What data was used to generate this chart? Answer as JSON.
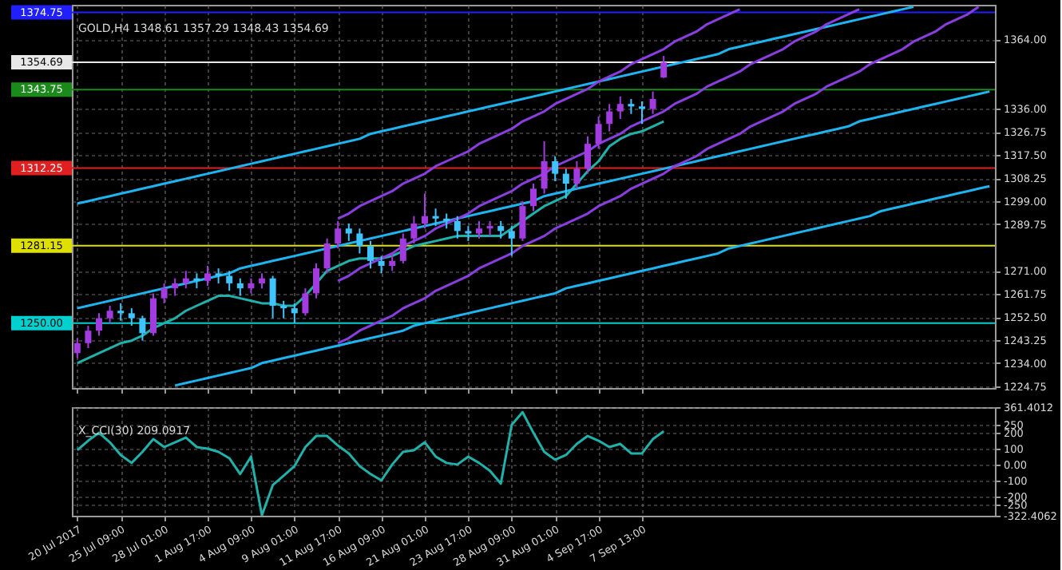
{
  "chart_data": [
    {
      "type": "candlestick",
      "title": "GOLD,H4  1348.61 1357.29 1348.43 1354.69",
      "categories": [
        null,
        null,
        null,
        null,
        null,
        null,
        null,
        null,
        null,
        null,
        null,
        null,
        null,
        null,
        null,
        null,
        null,
        null,
        null,
        null,
        null,
        null,
        null,
        null,
        null,
        null,
        null,
        null,
        null,
        null,
        null,
        null,
        null,
        null,
        null,
        null,
        null,
        null,
        null,
        null,
        null,
        null,
        null,
        null,
        null,
        null,
        null,
        null,
        null,
        null,
        null,
        null,
        null,
        null,
        null,
        null,
        null,
        null,
        null,
        null,
        null,
        null,
        null,
        null,
        null,
        null,
        null,
        null,
        null,
        null,
        null,
        null,
        null,
        null,
        null,
        null,
        null,
        null,
        null,
        null,
        null,
        null,
        null,
        null,
        null
      ],
      "ohlc": [
        [
          1238,
          1244,
          1236,
          1242
        ],
        [
          1242,
          1249,
          1240,
          1247
        ],
        [
          1247,
          1254,
          1245,
          1252
        ],
        [
          1252,
          1257,
          1250,
          1255
        ],
        [
          1255,
          1258,
          1251,
          1254
        ],
        [
          1254,
          1256,
          1249,
          1252
        ],
        [
          1252,
          1253,
          1243,
          1246
        ],
        [
          1246,
          1262,
          1245,
          1260
        ],
        [
          1260,
          1266,
          1258,
          1264
        ],
        [
          1264,
          1268,
          1261,
          1266
        ],
        [
          1266,
          1271,
          1264,
          1268
        ],
        [
          1268,
          1270,
          1264,
          1267
        ],
        [
          1267,
          1273,
          1265,
          1270
        ],
        [
          1270,
          1272,
          1266,
          1269
        ],
        [
          1269,
          1271,
          1263,
          1266
        ],
        [
          1266,
          1268,
          1261,
          1264
        ],
        [
          1264,
          1268,
          1262,
          1266
        ],
        [
          1266,
          1270,
          1264,
          1268
        ],
        [
          1268,
          1269,
          1252,
          1257
        ],
        [
          1257,
          1259,
          1252,
          1256
        ],
        [
          1256,
          1258,
          1250,
          1254
        ],
        [
          1254,
          1264,
          1253,
          1262
        ],
        [
          1262,
          1274,
          1260,
          1272
        ],
        [
          1272,
          1284,
          1270,
          1282
        ],
        [
          1282,
          1291,
          1280,
          1288
        ],
        [
          1288,
          1290,
          1283,
          1286
        ],
        [
          1286,
          1288,
          1278,
          1281
        ],
        [
          1281,
          1283,
          1272,
          1275
        ],
        [
          1275,
          1277,
          1270,
          1273
        ],
        [
          1273,
          1278,
          1271,
          1275
        ],
        [
          1275,
          1286,
          1274,
          1284
        ],
        [
          1284,
          1293,
          1282,
          1290
        ],
        [
          1290,
          1302,
          1288,
          1293
        ],
        [
          1293,
          1296,
          1289,
          1292
        ],
        [
          1292,
          1294,
          1288,
          1291
        ],
        [
          1291,
          1293,
          1284,
          1287
        ],
        [
          1287,
          1289,
          1283,
          1286
        ],
        [
          1286,
          1291,
          1284,
          1288
        ],
        [
          1288,
          1291,
          1285,
          1289
        ],
        [
          1289,
          1291,
          1284,
          1287
        ],
        [
          1287,
          1289,
          1277,
          1284
        ],
        [
          1284,
          1299,
          1283,
          1297
        ],
        [
          1297,
          1306,
          1295,
          1304
        ],
        [
          1304,
          1323,
          1302,
          1315
        ],
        [
          1315,
          1317,
          1307,
          1310
        ],
        [
          1310,
          1312,
          1300,
          1306
        ],
        [
          1306,
          1315,
          1304,
          1312
        ],
        [
          1312,
          1325,
          1310,
          1322
        ],
        [
          1322,
          1333,
          1320,
          1330
        ],
        [
          1330,
          1338,
          1327,
          1335
        ],
        [
          1335,
          1341,
          1332,
          1338
        ],
        [
          1338,
          1340,
          1334,
          1337
        ],
        [
          1337,
          1339,
          1330,
          1336
        ],
        [
          1336,
          1343,
          1334,
          1340
        ],
        [
          1348.61,
          1357.29,
          1348.43,
          1354.69
        ],
        null,
        null,
        null,
        null,
        null,
        null,
        null,
        null,
        null,
        null,
        null,
        null,
        null,
        null,
        null,
        null,
        null,
        null,
        null,
        null,
        null,
        null,
        null,
        null,
        null,
        null,
        null,
        null,
        null,
        null
      ],
      "colors": [
        "#a23ce0",
        "#a23ce0",
        "#a23ce0",
        "#a23ce0",
        "#40c4ff",
        "#40c4ff",
        "#40c4ff",
        "#a23ce0",
        "#a23ce0",
        "#a23ce0",
        "#a23ce0",
        "#40c4ff",
        "#a23ce0",
        "#40c4ff",
        "#40c4ff",
        "#40c4ff",
        "#a23ce0",
        "#a23ce0",
        "#40c4ff",
        "#40c4ff",
        "#40c4ff",
        "#a23ce0",
        "#a23ce0",
        "#a23ce0",
        "#a23ce0",
        "#40c4ff",
        "#40c4ff",
        "#40c4ff",
        "#40c4ff",
        "#a23ce0",
        "#a23ce0",
        "#a23ce0",
        "#a23ce0",
        "#40c4ff",
        "#40c4ff",
        "#40c4ff",
        "#40c4ff",
        "#a23ce0",
        "#a23ce0",
        "#40c4ff",
        "#40c4ff",
        "#a23ce0",
        "#a23ce0",
        "#a23ce0",
        "#40c4ff",
        "#40c4ff",
        "#a23ce0",
        "#a23ce0",
        "#a23ce0",
        "#a23ce0",
        "#a23ce0",
        "#40c4ff",
        "#40c4ff",
        "#a23ce0",
        "#a23ce0",
        null,
        null,
        null,
        null,
        null,
        null,
        null,
        null,
        null,
        null,
        null,
        null,
        null,
        null,
        null,
        null,
        null,
        null,
        null,
        null,
        null,
        null,
        null,
        null,
        null,
        null,
        null,
        null,
        null,
        null
      ],
      "series": [
        {
          "type": "line",
          "color": "#20b2aa",
          "values": [
            1234,
            1236,
            1238,
            1240,
            1242,
            1243,
            1245,
            1248,
            1250,
            1252,
            1255,
            1257,
            1259,
            1261,
            1261,
            1260,
            1259,
            1258,
            1258,
            1257,
            1257,
            1261,
            1266,
            1271,
            1273,
            1275,
            1276,
            1276,
            1276,
            1277,
            1279,
            1281,
            1282,
            1283,
            1284,
            1285,
            1285,
            1285,
            1285,
            1285,
            1288,
            1291,
            1294,
            1297,
            1299,
            1301,
            1306,
            1311,
            1315,
            1321,
            1324,
            1326,
            1327,
            1329,
            1331,
            null,
            null,
            null,
            null,
            null,
            null,
            null,
            null,
            null,
            null,
            null,
            null,
            null,
            null,
            null,
            null,
            null,
            null,
            null,
            null,
            null,
            null,
            null,
            null,
            null,
            null,
            null,
            null,
            null,
            null
          ]
        },
        {
          "type": "line",
          "color": "#1eb4f0",
          "values": [
            1298,
            1299,
            1300,
            1301,
            1302,
            1303,
            1304,
            1305,
            1306,
            1307,
            1308,
            1309,
            1310,
            1311,
            1312,
            1313,
            1314,
            1315,
            1316,
            1317,
            1318,
            1319,
            1320,
            1321,
            1322,
            1323,
            1324,
            1326,
            1327,
            1328,
            1329,
            1330,
            1331,
            1332,
            1333,
            1334,
            1335,
            1336,
            1337,
            1338,
            1339,
            1340,
            1341,
            1342,
            1343,
            1344,
            1345,
            1346,
            1347,
            1348,
            1349,
            1350,
            1351,
            1352,
            1353,
            1354,
            1355,
            1356,
            1357,
            1358,
            1360,
            1361,
            1362,
            1363,
            1364,
            1365,
            1366,
            1367,
            1368,
            1369,
            1370,
            1371,
            1372,
            1373,
            1374,
            1375,
            1376,
            1377,
            null,
            null,
            null,
            null,
            null,
            null,
            null
          ]
        },
        {
          "type": "line",
          "color": "#1eb4f0",
          "values": [
            1256,
            1257,
            1258,
            1259,
            1260,
            1261,
            1262,
            1263,
            1264,
            1265,
            1266,
            1267,
            1268,
            1269,
            1270,
            1272,
            1273,
            1274,
            1275,
            1276,
            1277,
            1278,
            1279,
            1280,
            1281,
            1282,
            1283,
            1284,
            1285,
            1286,
            1287,
            1288,
            1289,
            1290,
            1291,
            1292,
            1293,
            1294,
            1295,
            1296,
            1297,
            1298,
            1299,
            1301,
            1302,
            1303,
            1304,
            1305,
            1306,
            1307,
            1308,
            1309,
            1310,
            1311,
            1312,
            1313,
            1314,
            1315,
            1316,
            1317,
            1318,
            1319,
            1320,
            1321,
            1322,
            1323,
            1324,
            1325,
            1326,
            1327,
            1328,
            1329,
            1331,
            1332,
            1333,
            1334,
            1335,
            1336,
            1337,
            1338,
            1339,
            1340,
            1341,
            1342,
            1343
          ]
        },
        {
          "type": "line",
          "color": "#1eb4f0",
          "values": [
            null,
            null,
            null,
            null,
            null,
            null,
            null,
            null,
            null,
            1225,
            1226,
            1227,
            1228,
            1229,
            1230,
            1231,
            1232,
            1234,
            1235,
            1236,
            1237,
            1238,
            1239,
            1240,
            1241,
            1242,
            1243,
            1244,
            1245,
            1246,
            1247,
            1249,
            1250,
            1251,
            1252,
            1253,
            1254,
            1255,
            1256,
            1257,
            1258,
            1259,
            1260,
            1261,
            1262,
            1264,
            1265,
            1266,
            1267,
            1268,
            1269,
            1270,
            1271,
            1272,
            1273,
            1274,
            1275,
            1276,
            1277,
            1278,
            1280,
            1281,
            1282,
            1283,
            1284,
            1285,
            1286,
            1287,
            1288,
            1289,
            1290,
            1291,
            1292,
            1293,
            1295,
            1296,
            1297,
            1298,
            1299,
            1300,
            1301,
            1302,
            1303,
            1304,
            1305
          ]
        },
        {
          "type": "line",
          "color": "#8a3ee0",
          "values": [
            null,
            null,
            null,
            null,
            null,
            null,
            null,
            null,
            null,
            null,
            null,
            null,
            null,
            null,
            null,
            null,
            null,
            null,
            null,
            null,
            null,
            null,
            null,
            null,
            1292,
            1294,
            1297,
            1299,
            1301,
            1303,
            1306,
            1308,
            1310,
            1313,
            1315,
            1317,
            1319,
            1322,
            1324,
            1326,
            1328,
            1331,
            1333,
            1335,
            1338,
            1340,
            1342,
            1344,
            1347,
            1349,
            1351,
            1354,
            1356,
            1358,
            1360,
            1363,
            1365,
            1367,
            1370,
            1372,
            1374,
            1376,
            null,
            null,
            null,
            null,
            null,
            null,
            null,
            null,
            null,
            null,
            null,
            null,
            null,
            null,
            null,
            null,
            null,
            null,
            null,
            null,
            null,
            null,
            null
          ]
        },
        {
          "type": "line",
          "color": "#8a3ee0",
          "values": [
            null,
            null,
            null,
            null,
            null,
            null,
            null,
            null,
            null,
            null,
            null,
            null,
            null,
            null,
            null,
            null,
            null,
            null,
            null,
            null,
            null,
            null,
            null,
            null,
            1267,
            1269,
            1272,
            1274,
            1276,
            1278,
            1281,
            1283,
            1285,
            1288,
            1290,
            1292,
            1294,
            1297,
            1299,
            1301,
            1303,
            1306,
            1308,
            1310,
            1313,
            1315,
            1317,
            1319,
            1322,
            1324,
            1326,
            1329,
            1331,
            1333,
            1335,
            1338,
            1340,
            1342,
            1345,
            1347,
            1349,
            1351,
            1354,
            1356,
            1358,
            1360,
            1363,
            1365,
            1367,
            1370,
            1372,
            1374,
            1376,
            null,
            null,
            null,
            null,
            null,
            null,
            null,
            null,
            null,
            null,
            null,
            null
          ]
        },
        {
          "type": "line",
          "color": "#8a3ee0",
          "values": [
            null,
            null,
            null,
            null,
            null,
            null,
            null,
            null,
            null,
            null,
            null,
            null,
            null,
            null,
            null,
            null,
            null,
            null,
            null,
            null,
            null,
            null,
            null,
            null,
            1242,
            1244,
            1247,
            1249,
            1251,
            1253,
            1256,
            1258,
            1260,
            1263,
            1265,
            1267,
            1269,
            1272,
            1274,
            1276,
            1278,
            1281,
            1283,
            1285,
            1288,
            1290,
            1292,
            1294,
            1297,
            1299,
            1301,
            1304,
            1306,
            1308,
            1310,
            1313,
            1315,
            1317,
            1320,
            1322,
            1324,
            1326,
            1329,
            1331,
            1333,
            1335,
            1338,
            1340,
            1342,
            1345,
            1347,
            1349,
            1351,
            1354,
            1356,
            1358,
            1360,
            1363,
            1365,
            1367,
            1370,
            1372,
            1374,
            1377,
            null
          ]
        }
      ],
      "ylim": [
        1224.0,
        1377.8
      ],
      "yticks": [
        1224.75,
        {
          "value": 1234,
          "label": "1234.00"
        },
        1243.25,
        {
          "value": 1252.5,
          "label": "1252.50"
        },
        1261.75,
        {
          "value": 1271,
          "label": "1271.00"
        },
        1289.75,
        {
          "value": 1299,
          "label": "1299.00"
        },
        1308.25,
        {
          "value": 1317.5,
          "label": "1317.50"
        },
        1326.75,
        {
          "value": 1336,
          "label": "1336.00"
        },
        {
          "value": 1364,
          "label": "1364.00"
        }
      ],
      "ref_lines": [
        {
          "axis": "y",
          "value": 1374.75,
          "label": "1374.75",
          "color": "#2020ff"
        },
        {
          "axis": "y",
          "value": 1354.69,
          "label": "1354.69",
          "color": "#e8e8e8"
        },
        {
          "axis": "y",
          "value": 1343.75,
          "label": "1343.75",
          "color": "#1a8a1a"
        },
        {
          "axis": "y",
          "value": 1312.25,
          "label": "1312.25",
          "color": "#e02020"
        },
        {
          "axis": "y",
          "value": 1281.15,
          "label": "1281.15",
          "color": "#e0e000"
        },
        {
          "axis": "y",
          "value": 1250.0,
          "label": "1250.00",
          "color": "#00d0d0"
        }
      ],
      "grid": true,
      "tick_labels": "y"
    },
    {
      "type": "line",
      "title": "X_CCI(30) 209.0917",
      "categories": [
        "20 Jul 2017",
        null,
        null,
        null,
        "25 Jul 09:00",
        null,
        null,
        null,
        "28 Jul 01:00",
        null,
        null,
        null,
        "1 Aug 17:00",
        null,
        null,
        null,
        "4 Aug 09:00",
        null,
        null,
        null,
        "9 Aug 01:00",
        null,
        null,
        null,
        "11 Aug 17:00",
        null,
        null,
        null,
        "16 Aug 09:00",
        null,
        null,
        null,
        "21 Aug 01:00",
        null,
        null,
        null,
        "23 Aug 17:00",
        null,
        null,
        null,
        "28 Aug 09:00",
        null,
        null,
        null,
        "31 Aug 01:00",
        null,
        null,
        null,
        "4 Sep 17:00",
        null,
        null,
        null,
        "7 Sep 13:00",
        null,
        null,
        null,
        null,
        null,
        null,
        null,
        null,
        null,
        null,
        null,
        null,
        null,
        null,
        null,
        null,
        null,
        null,
        null,
        null,
        null,
        null,
        null,
        null,
        null,
        null,
        null,
        null,
        null,
        null,
        null,
        null
      ],
      "series": [
        {
          "color": "#20b2aa",
          "values": [
            90,
            150,
            200,
            140,
            60,
            10,
            80,
            160,
            110,
            140,
            170,
            110,
            100,
            80,
            40,
            -60,
            50,
            -320,
            -130,
            -70,
            -10,
            110,
            180,
            180,
            120,
            70,
            -10,
            -60,
            -100,
            0,
            80,
            90,
            140,
            50,
            10,
            0,
            50,
            10,
            -40,
            -120,
            250,
            330,
            200,
            80,
            30,
            60,
            130,
            180,
            150,
            110,
            130,
            70,
            70,
            160,
            209.0917,
            null,
            null,
            null,
            null,
            null,
            null,
            null,
            null,
            null,
            null,
            null,
            null,
            null,
            null,
            null,
            null,
            null,
            null,
            null,
            null,
            null,
            null,
            null,
            null,
            null,
            null,
            null,
            null,
            null,
            null
          ]
        }
      ],
      "ylim": [
        -322.4062,
        361.4012
      ],
      "yticks": [
        361.4012,
        250,
        200,
        100,
        {
          "value": 0,
          "label": "0.00"
        },
        -100,
        -200,
        -250,
        -322.4062
      ],
      "grid": true
    }
  ]
}
